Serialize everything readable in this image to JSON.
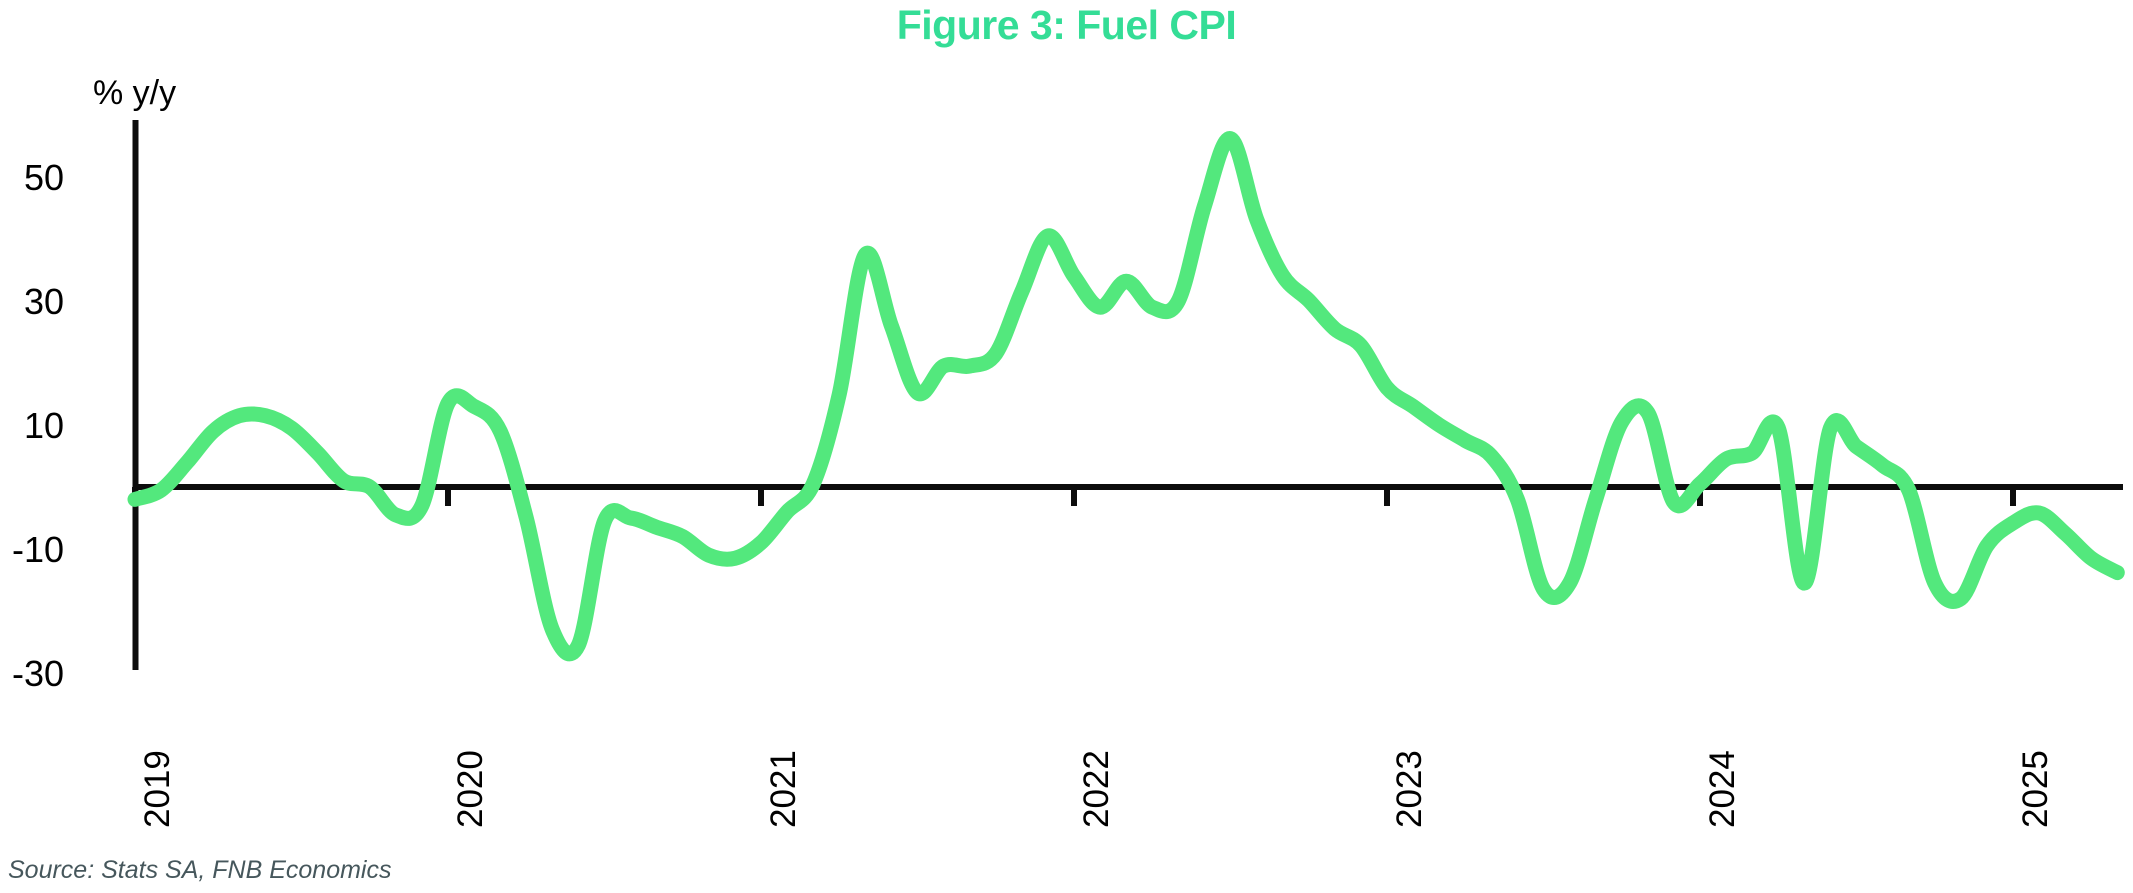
{
  "title": "Figure 3: Fuel CPI",
  "source": "Source: Stats SA, FNB Economics",
  "colors": {
    "title": "#34dd96",
    "line": "#53e87d",
    "axis": "#0d0d0d",
    "tick_text": "#000000",
    "source_text": "#46575c"
  },
  "chart_data": {
    "type": "line",
    "title": "Figure 3: Fuel CPI",
    "series_name": "Fuel CPI",
    "unit_label": "% y/y",
    "x_start": "2019-01",
    "x_freq": "monthly",
    "n_months": 77,
    "values": [
      -2,
      -0.5,
      4,
      9,
      11.5,
      11.5,
      9.5,
      5.5,
      1,
      0,
      -4.5,
      -3,
      13.5,
      13,
      9,
      -5,
      -23,
      -25.5,
      -5.5,
      -5,
      -6.5,
      -8,
      -11,
      -11.5,
      -9,
      -4,
      0.5,
      15,
      37.5,
      26,
      15.2,
      19.5,
      19.5,
      21.5,
      31.5,
      40.5,
      34,
      29,
      33.2,
      29,
      30,
      45.3,
      56.2,
      43.2,
      34.1,
      30.1,
      25.5,
      22.8,
      16,
      13,
      10,
      7.5,
      5,
      -2,
      -16.5,
      -15.5,
      -2,
      10.5,
      12,
      -2.5,
      0.5,
      4.5,
      5.5,
      9.5,
      -15.5,
      9.5,
      6.5,
      3.5,
      -0.5,
      -15.5,
      -18,
      -9.5,
      -5.8,
      -4.2,
      -7.5,
      -11.5,
      -13.8
    ],
    "x_tick_labels": [
      "2019",
      "2020",
      "2021",
      "2022",
      "2023",
      "2024",
      "2025"
    ],
    "y_ticks": [
      50,
      30,
      10,
      -10,
      -30
    ],
    "ylim": [
      -30,
      59
    ],
    "grid": false,
    "legend": "none"
  }
}
